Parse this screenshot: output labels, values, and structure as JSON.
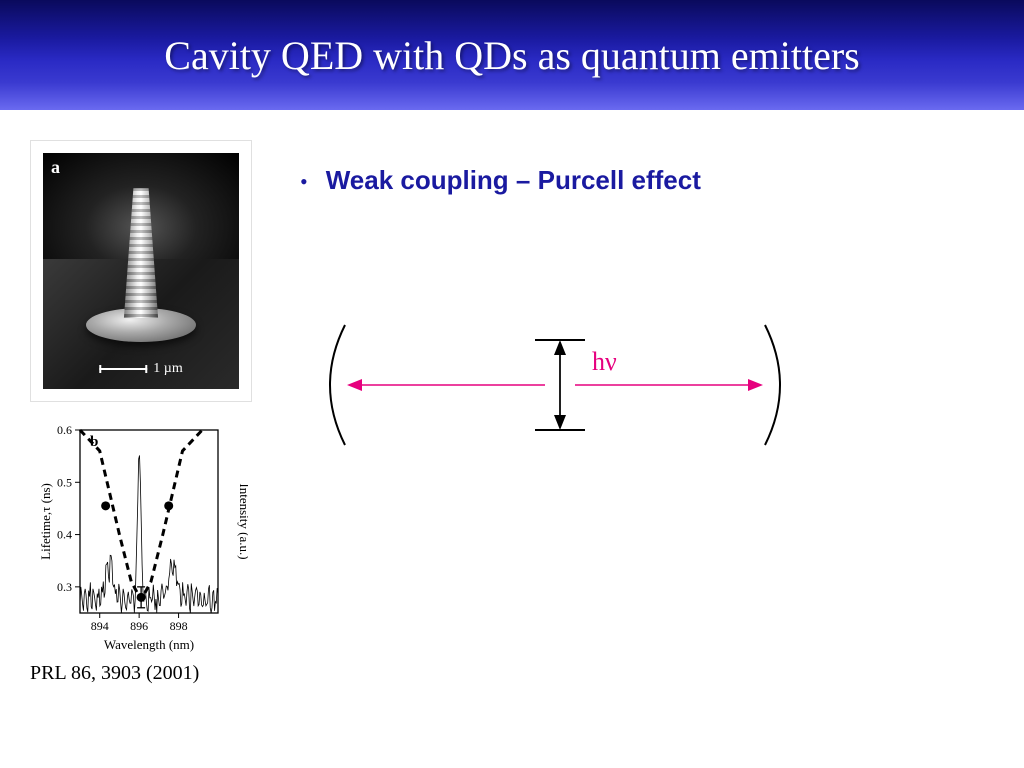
{
  "title": "Cavity QED with QDs as quantum emitters",
  "bullet": {
    "text": "Weak coupling – Purcell effect",
    "color": "#1a1aa0"
  },
  "cavity_diagram": {
    "photon_label": "hν",
    "photon_label_color": "#e6007e",
    "arrow_color": "#e6007e",
    "mirror_color": "#000000",
    "level_color": "#000000"
  },
  "sem_panel": {
    "panel_label": "a",
    "scale_label": "1 µm"
  },
  "spectrum": {
    "panel_label": "b",
    "xlabel": "Wavelength (nm)",
    "ylabel_left": "Lifetime,τ (ns)",
    "ylabel_right": "Intensity (a.u.)",
    "xlim": [
      893,
      900
    ],
    "ylim": [
      0.25,
      0.6
    ],
    "xticks": [
      894,
      896,
      898
    ],
    "yticks": [
      0.3,
      0.4,
      0.5,
      0.6
    ],
    "lifetime_points": [
      {
        "x": 894.3,
        "y": 0.455
      },
      {
        "x": 896.1,
        "y": 0.28,
        "err": 0.02
      },
      {
        "x": 897.5,
        "y": 0.455
      }
    ],
    "lifetime_curve_dashed": [
      {
        "x": 893.0,
        "y": 0.72
      },
      {
        "x": 894.0,
        "y": 0.56
      },
      {
        "x": 895.0,
        "y": 0.4
      },
      {
        "x": 895.6,
        "y": 0.31
      },
      {
        "x": 896.1,
        "y": 0.275
      },
      {
        "x": 896.6,
        "y": 0.31
      },
      {
        "x": 897.2,
        "y": 0.4
      },
      {
        "x": 898.2,
        "y": 0.56
      },
      {
        "x": 899.2,
        "y": 0.72
      }
    ],
    "intensity_trace_color": "#000000",
    "marker_color": "#000000",
    "dashed_color": "#000000",
    "axes_color": "#000000",
    "background_color": "#ffffff",
    "label_fontsize": 12
  },
  "citation": "PRL 86, 3903 (2001)",
  "title_bar_gradient": [
    "#0a0a5c",
    "#3a3ad0"
  ]
}
